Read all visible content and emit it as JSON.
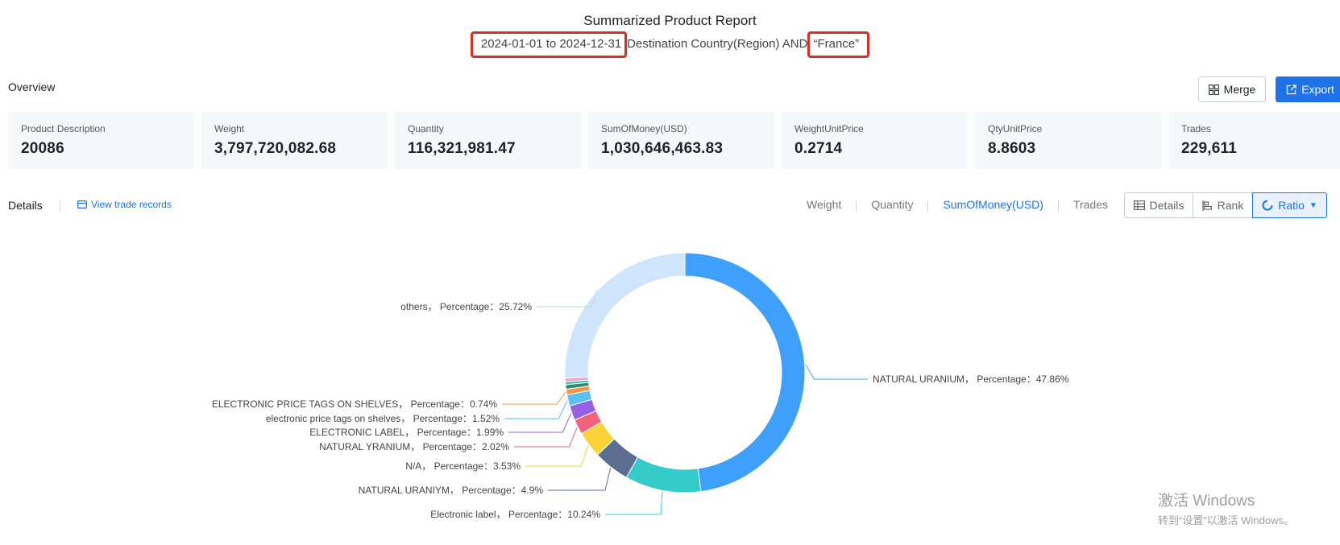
{
  "report": {
    "title": "Summarized Product Report",
    "date_range": "2024-01-01 to 2024-12-31",
    "criteria_text": "Destination Country(Region) AND",
    "country": "“France”"
  },
  "overview": {
    "label": "Overview",
    "merge_label": "Merge",
    "export_label": "Export",
    "stats": [
      {
        "label": "Product Description",
        "value": "20086"
      },
      {
        "label": "Weight",
        "value": "3,797,720,082.68"
      },
      {
        "label": "Quantity",
        "value": "116,321,981.47"
      },
      {
        "label": "SumOfMoney(USD)",
        "value": "1,030,646,463.83"
      },
      {
        "label": "WeightUnitPrice",
        "value": "0.2714"
      },
      {
        "label": "QtyUnitPrice",
        "value": "8.8603"
      },
      {
        "label": "Trades",
        "value": "229,611"
      }
    ]
  },
  "details": {
    "label": "Details",
    "view_records_label": "View trade records",
    "metric_tabs": [
      "Weight",
      "Quantity",
      "SumOfMoney(USD)",
      "Trades"
    ],
    "active_metric": "SumOfMoney(USD)",
    "view_buttons": [
      "Details",
      "Rank",
      "Ratio"
    ],
    "active_view": "Ratio"
  },
  "chart_data": {
    "type": "pie",
    "label_suffix": "Percentage",
    "slices": [
      {
        "name": "NATURAL URANIUM",
        "value": 47.86,
        "label": "47.86%",
        "color": "#3ea0fa"
      },
      {
        "name": "Electronic label",
        "value": 10.24,
        "label": "10.24%",
        "color": "#36cbcb"
      },
      {
        "name": "NATURAL URANIYM",
        "value": 4.9,
        "label": "4.9%",
        "color": "#5b6e90"
      },
      {
        "name": "N/A",
        "value": 3.53,
        "label": "3.53%",
        "color": "#fad337"
      },
      {
        "name": "NATURAL YRANIUM",
        "value": 2.02,
        "label": "2.02%",
        "color": "#f2637b"
      },
      {
        "name": "ELECTRONIC LABEL",
        "value": 1.99,
        "label": "1.99%",
        "color": "#975fe4"
      },
      {
        "name": "electronic price tags on shelves",
        "value": 1.52,
        "label": "1.52%",
        "color": "#58c1f2"
      },
      {
        "name": "ELECTRONIC PRICE TAGS ON SHELVES",
        "value": 0.74,
        "label": "0.74%",
        "color": "#f49542"
      },
      {
        "name": "",
        "value": 0.6,
        "label": "",
        "color": "#2d8b6b"
      },
      {
        "name": "",
        "value": 0.4,
        "label": "",
        "color": "#4fc1b4"
      },
      {
        "name": "",
        "value": 0.48,
        "label": "",
        "color": "#f29fc5"
      },
      {
        "name": "others",
        "value": 25.72,
        "label": "25.72%",
        "color": "#cfe5fc"
      }
    ]
  },
  "watermark": {
    "title": "激活 Windows",
    "subtitle": "转到“设置”以激活 Windows。"
  }
}
